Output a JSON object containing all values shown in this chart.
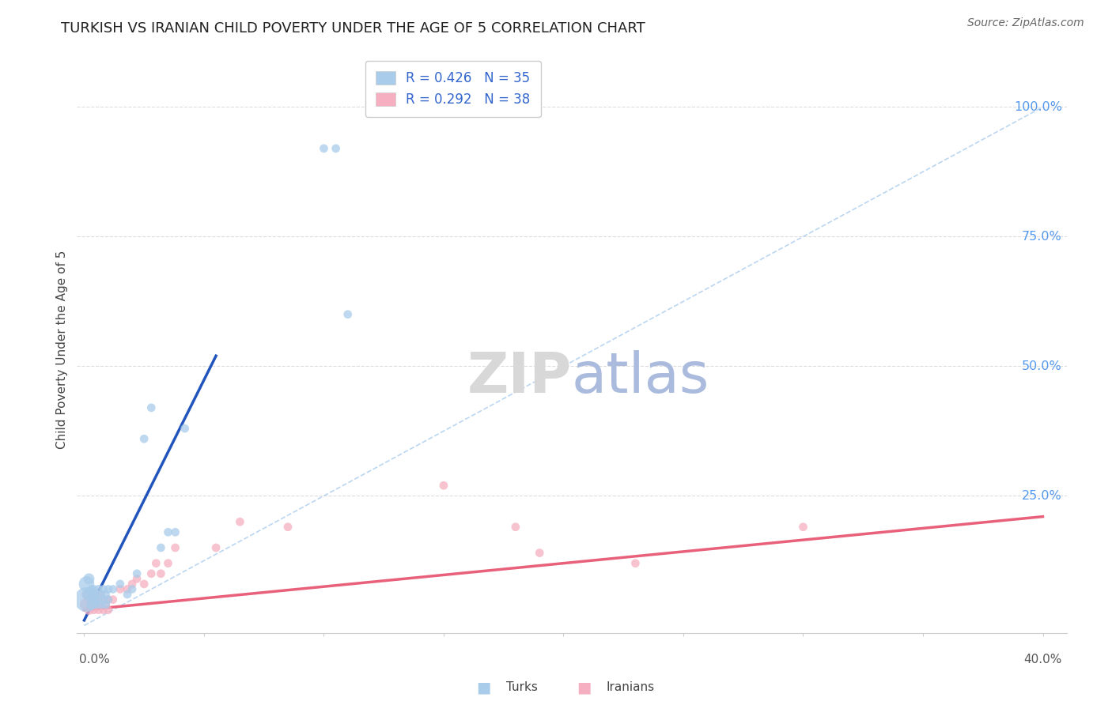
{
  "title": "TURKISH VS IRANIAN CHILD POVERTY UNDER THE AGE OF 5 CORRELATION CHART",
  "source": "Source: ZipAtlas.com",
  "ylabel": "Child Poverty Under the Age of 5",
  "turks_R": "0.426",
  "turks_N": "35",
  "iranians_R": "0.292",
  "iranians_N": "38",
  "turk_color": "#a8ccea",
  "iranian_color": "#f5afc0",
  "turk_line_color": "#2255bb",
  "iranian_line_color": "#e8607a",
  "diag_color": "#aaccee",
  "grid_color": "#dddddd",
  "right_label_color": "#5599ee",
  "legend_label_turks": "Turks",
  "legend_label_iranians": "Iranians",
  "turks_x": [
    0.001,
    0.001,
    0.002,
    0.002,
    0.003,
    0.003,
    0.003,
    0.004,
    0.004,
    0.005,
    0.005,
    0.006,
    0.006,
    0.007,
    0.007,
    0.008,
    0.008,
    0.009,
    0.009,
    0.01,
    0.01,
    0.012,
    0.015,
    0.018,
    0.02,
    0.022,
    0.025,
    0.028,
    0.032,
    0.035,
    0.038,
    0.042,
    0.1,
    0.105,
    0.11
  ],
  "turks_y": [
    0.05,
    0.08,
    0.06,
    0.09,
    0.04,
    0.06,
    0.07,
    0.05,
    0.07,
    0.04,
    0.06,
    0.05,
    0.07,
    0.04,
    0.06,
    0.05,
    0.07,
    0.04,
    0.06,
    0.05,
    0.07,
    0.07,
    0.08,
    0.06,
    0.07,
    0.1,
    0.36,
    0.42,
    0.15,
    0.18,
    0.18,
    0.38,
    0.92,
    0.92,
    0.6
  ],
  "turks_sizes": [
    500,
    200,
    150,
    100,
    80,
    60,
    60,
    60,
    60,
    60,
    60,
    60,
    60,
    60,
    60,
    60,
    60,
    60,
    60,
    60,
    60,
    60,
    60,
    60,
    60,
    60,
    60,
    60,
    60,
    60,
    60,
    60,
    60,
    60,
    60
  ],
  "iranians_x": [
    0.001,
    0.001,
    0.002,
    0.002,
    0.003,
    0.003,
    0.004,
    0.004,
    0.005,
    0.005,
    0.006,
    0.006,
    0.007,
    0.007,
    0.008,
    0.008,
    0.009,
    0.01,
    0.01,
    0.012,
    0.015,
    0.018,
    0.02,
    0.022,
    0.025,
    0.028,
    0.03,
    0.032,
    0.035,
    0.038,
    0.055,
    0.065,
    0.085,
    0.15,
    0.18,
    0.19,
    0.23,
    0.3
  ],
  "iranians_y": [
    0.04,
    0.06,
    0.03,
    0.05,
    0.04,
    0.06,
    0.03,
    0.05,
    0.04,
    0.06,
    0.03,
    0.05,
    0.04,
    0.06,
    0.03,
    0.05,
    0.04,
    0.03,
    0.05,
    0.05,
    0.07,
    0.07,
    0.08,
    0.09,
    0.08,
    0.1,
    0.12,
    0.1,
    0.12,
    0.15,
    0.15,
    0.2,
    0.19,
    0.27,
    0.19,
    0.14,
    0.12,
    0.19
  ],
  "iranians_sizes": [
    150,
    80,
    80,
    60,
    60,
    60,
    60,
    60,
    60,
    60,
    60,
    60,
    60,
    60,
    60,
    60,
    60,
    60,
    60,
    60,
    60,
    60,
    60,
    60,
    60,
    60,
    60,
    60,
    60,
    60,
    60,
    60,
    60,
    60,
    60,
    60,
    60,
    60
  ],
  "turk_line_x": [
    0.0,
    0.055
  ],
  "turk_line_y": [
    0.01,
    0.52
  ],
  "iran_line_x": [
    0.0,
    0.4
  ],
  "iran_line_y": [
    0.03,
    0.21
  ],
  "diag_line_x": [
    0.0,
    0.4
  ],
  "diag_line_y": [
    0.0,
    1.0
  ],
  "xlim": [
    -0.003,
    0.41
  ],
  "ylim": [
    -0.015,
    1.08
  ],
  "xmax": 0.4,
  "ymax": 1.0
}
